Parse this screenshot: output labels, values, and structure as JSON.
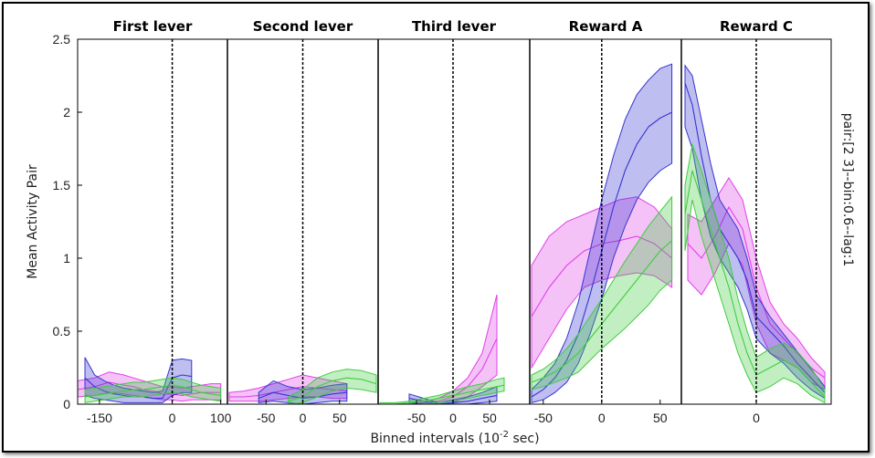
{
  "chart_data": {
    "type": "area",
    "ylabel": "Mean Activity Pair",
    "xlabel_main": "Binned intervals (10",
    "xlabel_exp": "-2",
    "xlabel_tail": " sec)",
    "side_label": "pair:[2 3]--bin:0.6--lag:1",
    "ylim": [
      0,
      2.5
    ],
    "yticks": [
      "0",
      "0.5",
      "1",
      "1.5",
      "2",
      "2.5"
    ],
    "grid": false,
    "series_colors": {
      "magenta": "#e040e8",
      "blue": "#3535d0",
      "green": "#40cc40"
    },
    "panels": [
      {
        "title": "First lever",
        "xlim": [
          -195,
          110
        ],
        "xticks": [
          {
            "v": -150,
            "label": "-150"
          },
          {
            "v": 0,
            "label": "0"
          },
          {
            "v": 100,
            "label": "100"
          }
        ],
        "series": [
          {
            "color": "magenta",
            "x": [
              -195,
              -160,
              -130,
              -100,
              -80,
              -60,
              -40,
              -20,
              0,
              20,
              40,
              60,
              80,
              100
            ],
            "mean": [
              0.1,
              0.12,
              0.15,
              0.13,
              0.12,
              0.1,
              0.09,
              0.07,
              0.07,
              0.06,
              0.07,
              0.08,
              0.08,
              0.08
            ],
            "upper": [
              0.16,
              0.18,
              0.22,
              0.2,
              0.18,
              0.16,
              0.14,
              0.12,
              0.12,
              0.11,
              0.12,
              0.13,
              0.14,
              0.14
            ],
            "lower": [
              0.05,
              0.06,
              0.08,
              0.07,
              0.06,
              0.05,
              0.04,
              0.03,
              0.03,
              0.02,
              0.03,
              0.03,
              0.03,
              0.03
            ]
          },
          {
            "color": "blue",
            "x": [
              -180,
              -160,
              -140,
              -120,
              -100,
              -80,
              -60,
              -40,
              -20,
              0,
              20,
              40
            ],
            "mean": [
              0.18,
              0.12,
              0.09,
              0.07,
              0.06,
              0.05,
              0.05,
              0.04,
              0.04,
              0.18,
              0.2,
              0.19
            ],
            "upper": [
              0.32,
              0.2,
              0.16,
              0.13,
              0.11,
              0.1,
              0.09,
              0.08,
              0.09,
              0.3,
              0.31,
              0.3
            ],
            "lower": [
              0.06,
              0.04,
              0.03,
              0.02,
              0.01,
              0.01,
              0.01,
              0.01,
              0.01,
              0.06,
              0.08,
              0.08
            ]
          },
          {
            "color": "green",
            "x": [
              -180,
              -160,
              -140,
              -120,
              -100,
              -80,
              -60,
              -40,
              -20,
              0,
              20,
              40,
              60,
              80,
              100
            ],
            "mean": [
              0.05,
              0.06,
              0.07,
              0.08,
              0.09,
              0.1,
              0.1,
              0.11,
              0.12,
              0.13,
              0.12,
              0.1,
              0.08,
              0.07,
              0.06
            ],
            "upper": [
              0.1,
              0.11,
              0.12,
              0.13,
              0.14,
              0.15,
              0.15,
              0.16,
              0.17,
              0.18,
              0.17,
              0.15,
              0.13,
              0.12,
              0.11
            ],
            "lower": [
              0.01,
              0.02,
              0.03,
              0.04,
              0.05,
              0.05,
              0.05,
              0.06,
              0.07,
              0.08,
              0.07,
              0.05,
              0.04,
              0.03,
              0.02
            ]
          }
        ]
      },
      {
        "title": "Second lever",
        "xlim": [
          -100,
          100
        ],
        "xticks": [
          {
            "v": -50,
            "label": "-50"
          },
          {
            "v": 0,
            "label": "0"
          },
          {
            "v": 50,
            "label": "50"
          }
        ],
        "series": [
          {
            "color": "magenta",
            "x": [
              -100,
              -80,
              -60,
              -40,
              -20,
              0,
              20,
              40,
              60
            ],
            "mean": [
              0.05,
              0.05,
              0.06,
              0.08,
              0.1,
              0.12,
              0.11,
              0.1,
              0.09
            ],
            "upper": [
              0.08,
              0.09,
              0.11,
              0.14,
              0.17,
              0.2,
              0.18,
              0.16,
              0.14
            ],
            "lower": [
              0.02,
              0.02,
              0.02,
              0.03,
              0.04,
              0.05,
              0.05,
              0.04,
              0.04
            ]
          },
          {
            "color": "blue",
            "x": [
              -60,
              -40,
              -20,
              0,
              20,
              40,
              60
            ],
            "mean": [
              0.04,
              0.08,
              0.06,
              0.04,
              0.05,
              0.07,
              0.08
            ],
            "upper": [
              0.08,
              0.16,
              0.12,
              0.1,
              0.11,
              0.13,
              0.14
            ],
            "lower": [
              0.01,
              0.02,
              0.01,
              0.0,
              0.01,
              0.02,
              0.02
            ]
          },
          {
            "color": "green",
            "x": [
              -20,
              0,
              20,
              40,
              60,
              80,
              100
            ],
            "mean": [
              0.02,
              0.05,
              0.12,
              0.16,
              0.18,
              0.17,
              0.14
            ],
            "upper": [
              0.05,
              0.1,
              0.18,
              0.22,
              0.24,
              0.23,
              0.2
            ],
            "lower": [
              0.0,
              0.01,
              0.05,
              0.09,
              0.11,
              0.1,
              0.08
            ]
          }
        ]
      },
      {
        "title": "Third lever",
        "xlim": [
          -100,
          70
        ],
        "xticks": [
          {
            "v": -50,
            "label": "-50"
          },
          {
            "v": 0,
            "label": "0"
          },
          {
            "v": 50,
            "label": "50"
          }
        ],
        "series": [
          {
            "color": "magenta",
            "x": [
              -60,
              -40,
              -20,
              0,
              20,
              40,
              60
            ],
            "mean": [
              0.0,
              0.01,
              0.02,
              0.05,
              0.12,
              0.24,
              0.45
            ],
            "upper": [
              0.01,
              0.02,
              0.04,
              0.09,
              0.18,
              0.35,
              0.75
            ],
            "lower": [
              0.0,
              0.0,
              0.0,
              0.01,
              0.05,
              0.12,
              0.2
            ]
          },
          {
            "color": "blue",
            "x": [
              -60,
              -40,
              -20,
              0,
              20,
              40,
              60
            ],
            "mean": [
              0.04,
              0.02,
              0.0,
              0.01,
              0.02,
              0.04,
              0.06
            ],
            "upper": [
              0.07,
              0.04,
              0.01,
              0.03,
              0.05,
              0.08,
              0.12
            ],
            "lower": [
              0.01,
              0.0,
              0.0,
              0.0,
              0.0,
              0.01,
              0.02
            ]
          },
          {
            "color": "green",
            "x": [
              -100,
              -80,
              -60,
              -40,
              -20,
              0,
              20,
              40,
              60,
              70
            ],
            "mean": [
              0.0,
              0.0,
              0.01,
              0.02,
              0.04,
              0.06,
              0.08,
              0.1,
              0.12,
              0.13
            ],
            "upper": [
              0.01,
              0.01,
              0.02,
              0.04,
              0.06,
              0.09,
              0.12,
              0.14,
              0.17,
              0.18
            ],
            "lower": [
              0.0,
              0.0,
              0.0,
              0.0,
              0.01,
              0.02,
              0.04,
              0.06,
              0.08,
              0.09
            ]
          }
        ]
      },
      {
        "title": "Reward A",
        "xlim": [
          -60,
          65
        ],
        "xticks": [
          {
            "v": -50,
            "label": "-50"
          },
          {
            "v": 0,
            "label": "0"
          },
          {
            "v": 50,
            "label": "50"
          }
        ],
        "series": [
          {
            "color": "magenta",
            "x": [
              -60,
              -45,
              -30,
              -15,
              0,
              15,
              30,
              45,
              60
            ],
            "mean": [
              0.6,
              0.8,
              0.95,
              1.05,
              1.1,
              1.12,
              1.15,
              1.1,
              1.0
            ],
            "upper": [
              0.95,
              1.15,
              1.25,
              1.3,
              1.35,
              1.4,
              1.42,
              1.35,
              1.2
            ],
            "lower": [
              0.25,
              0.45,
              0.65,
              0.8,
              0.85,
              0.88,
              0.9,
              0.88,
              0.8
            ]
          },
          {
            "color": "blue",
            "x": [
              -60,
              -50,
              -40,
              -30,
              -20,
              -10,
              0,
              10,
              20,
              30,
              40,
              50,
              60
            ],
            "mean": [
              0.05,
              0.1,
              0.18,
              0.3,
              0.48,
              0.75,
              1.05,
              1.35,
              1.6,
              1.78,
              1.9,
              1.96,
              2.0
            ],
            "upper": [
              0.1,
              0.18,
              0.28,
              0.45,
              0.7,
              1.05,
              1.4,
              1.7,
              1.95,
              2.12,
              2.22,
              2.3,
              2.33
            ],
            "lower": [
              0.01,
              0.03,
              0.08,
              0.15,
              0.28,
              0.48,
              0.72,
              1.0,
              1.22,
              1.4,
              1.52,
              1.6,
              1.65
            ]
          },
          {
            "color": "green",
            "x": [
              -60,
              -50,
              -40,
              -30,
              -20,
              -10,
              0,
              10,
              20,
              30,
              40,
              50,
              60
            ],
            "mean": [
              0.15,
              0.18,
              0.22,
              0.28,
              0.35,
              0.45,
              0.55,
              0.65,
              0.75,
              0.85,
              0.95,
              1.05,
              1.12
            ],
            "upper": [
              0.2,
              0.24,
              0.3,
              0.38,
              0.48,
              0.6,
              0.72,
              0.85,
              0.98,
              1.1,
              1.22,
              1.32,
              1.42
            ],
            "lower": [
              0.1,
              0.12,
              0.15,
              0.18,
              0.22,
              0.3,
              0.38,
              0.45,
              0.52,
              0.6,
              0.68,
              0.78,
              0.85
            ]
          }
        ]
      },
      {
        "title": "Reward C",
        "xlim": [
          -80,
          80
        ],
        "xticks": [
          {
            "v": 0,
            "label": "0"
          }
        ],
        "series": [
          {
            "color": "magenta",
            "x": [
              -75,
              -60,
              -45,
              -30,
              -15,
              0,
              15,
              30,
              45,
              60,
              75
            ],
            "mean": [
              1.1,
              1.0,
              1.15,
              1.35,
              1.2,
              0.8,
              0.55,
              0.45,
              0.35,
              0.25,
              0.18
            ],
            "upper": [
              1.3,
              1.25,
              1.4,
              1.55,
              1.4,
              1.0,
              0.7,
              0.55,
              0.45,
              0.32,
              0.22
            ],
            "lower": [
              0.85,
              0.75,
              0.9,
              1.1,
              0.95,
              0.55,
              0.35,
              0.3,
              0.25,
              0.15,
              0.1
            ]
          },
          {
            "color": "blue",
            "x": [
              -78,
              -70,
              -60,
              -50,
              -40,
              -30,
              -20,
              -10,
              0,
              15,
              30,
              45,
              60,
              75
            ],
            "mean": [
              2.2,
              2.05,
              1.7,
              1.4,
              1.2,
              1.1,
              1.0,
              0.85,
              0.6,
              0.5,
              0.4,
              0.28,
              0.18,
              0.08
            ],
            "upper": [
              2.32,
              2.25,
              1.95,
              1.65,
              1.4,
              1.3,
              1.2,
              1.0,
              0.75,
              0.6,
              0.48,
              0.36,
              0.24,
              0.12
            ],
            "lower": [
              1.9,
              1.75,
              1.4,
              1.15,
              1.0,
              0.9,
              0.8,
              0.65,
              0.45,
              0.35,
              0.28,
              0.18,
              0.1,
              0.04
            ]
          },
          {
            "color": "green",
            "x": [
              -78,
              -70,
              -60,
              -50,
              -40,
              -30,
              -20,
              -10,
              0,
              15,
              30,
              45,
              60,
              75
            ],
            "mean": [
              1.3,
              1.6,
              1.4,
              1.2,
              1.0,
              0.8,
              0.55,
              0.35,
              0.2,
              0.25,
              0.3,
              0.25,
              0.15,
              0.05
            ],
            "upper": [
              1.5,
              1.78,
              1.6,
              1.4,
              1.2,
              1.0,
              0.72,
              0.5,
              0.32,
              0.38,
              0.42,
              0.36,
              0.25,
              0.1
            ],
            "lower": [
              1.05,
              1.4,
              1.15,
              0.95,
              0.75,
              0.55,
              0.35,
              0.2,
              0.08,
              0.12,
              0.18,
              0.14,
              0.06,
              0.01
            ]
          }
        ]
      }
    ]
  }
}
